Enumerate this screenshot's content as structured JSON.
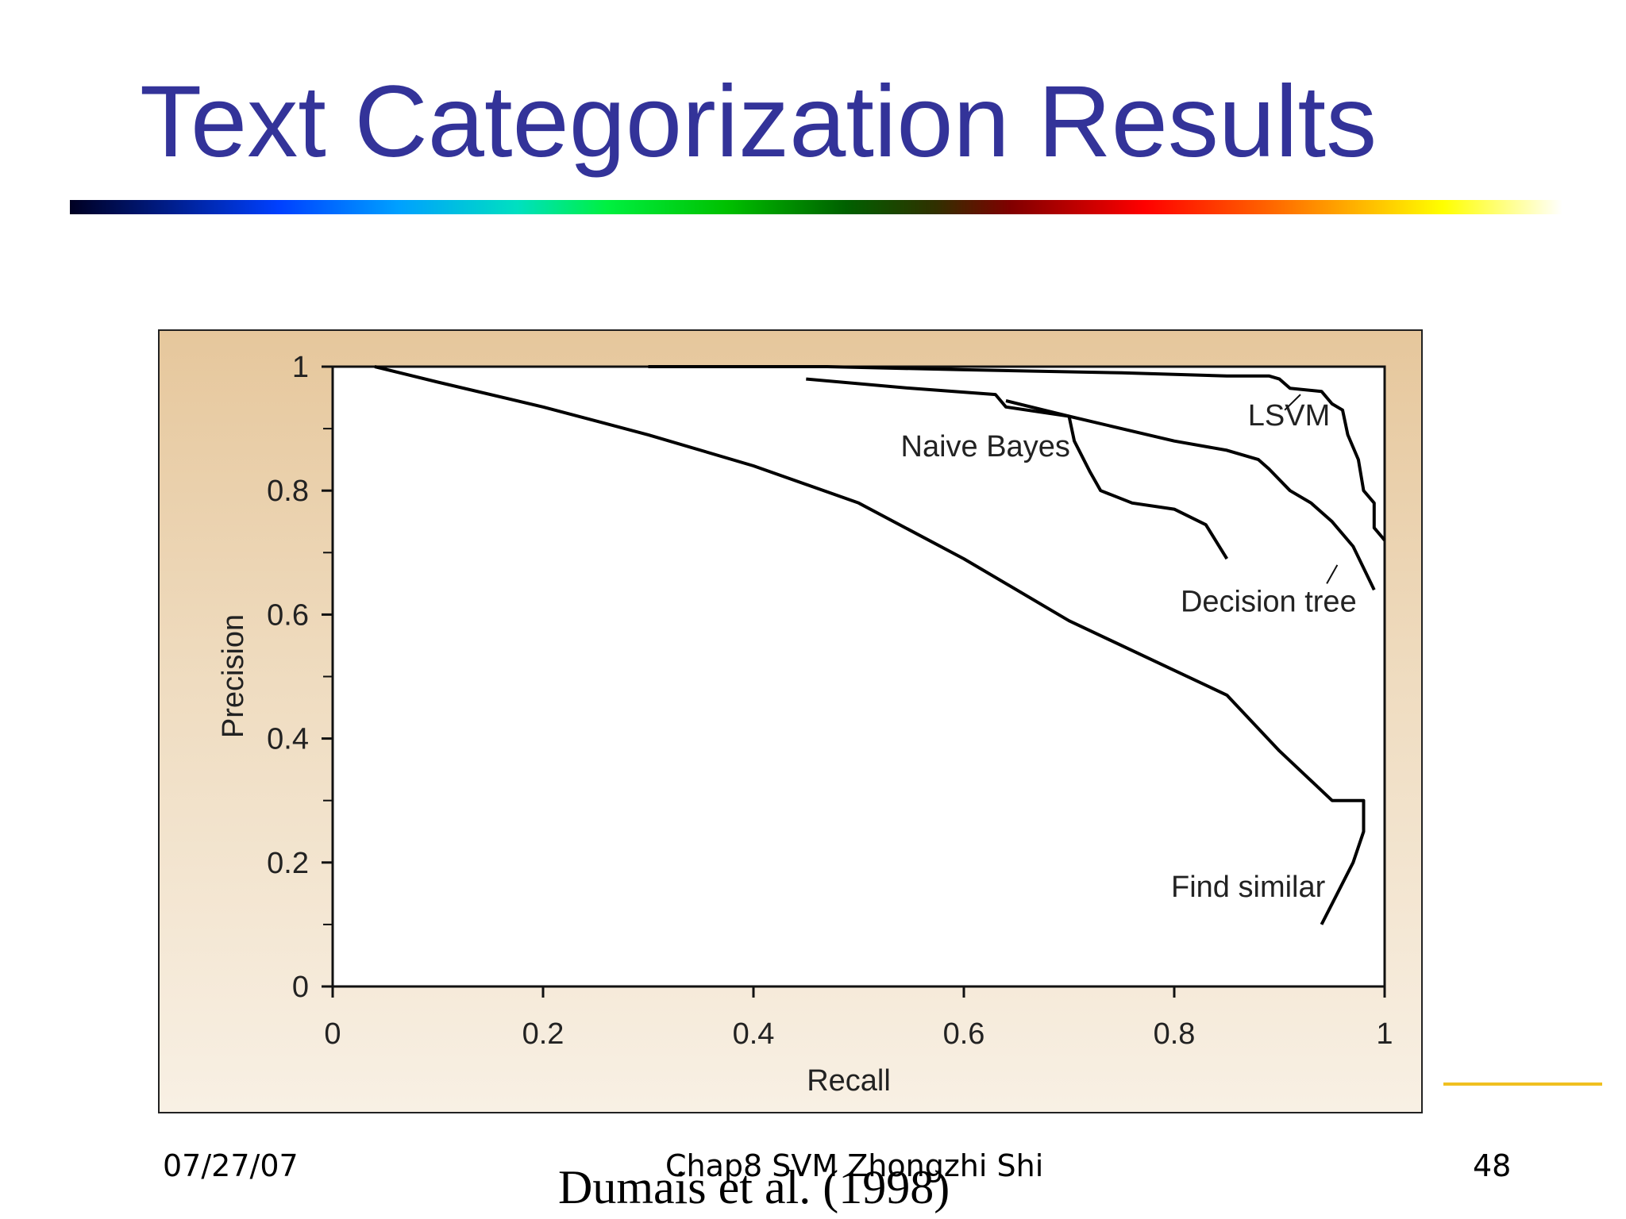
{
  "slide": {
    "title": "Text Categorization Results",
    "citation": "Dumais et al. (1998)",
    "footer_date": "07/27/07",
    "footer_center": "Chap8 SVM Zhongzhi Shi",
    "page_number": "48"
  },
  "colors": {
    "title": "#333399",
    "line": "#000000",
    "accent_line": "#f0c020"
  },
  "chart_data": {
    "type": "line",
    "title": "",
    "xlabel": "Recall",
    "ylabel": "Precision",
    "xlim": [
      0,
      1
    ],
    "ylim": [
      0,
      1
    ],
    "x_ticks": [
      "0",
      "0.2",
      "0.4",
      "0.6",
      "0.8",
      "1"
    ],
    "y_ticks": [
      "0",
      "0.2",
      "0.4",
      "0.6",
      "0.8",
      "1"
    ],
    "grid": false,
    "series": [
      {
        "name": "LSVM",
        "points": [
          [
            0.3,
            1.0
          ],
          [
            0.47,
            1.0
          ],
          [
            0.6,
            0.995
          ],
          [
            0.75,
            0.99
          ],
          [
            0.85,
            0.985
          ],
          [
            0.89,
            0.985
          ],
          [
            0.9,
            0.98
          ],
          [
            0.91,
            0.965
          ],
          [
            0.94,
            0.96
          ],
          [
            0.95,
            0.94
          ],
          [
            0.96,
            0.93
          ],
          [
            0.965,
            0.89
          ],
          [
            0.975,
            0.85
          ],
          [
            0.98,
            0.8
          ],
          [
            0.99,
            0.78
          ],
          [
            0.99,
            0.74
          ],
          [
            1.0,
            0.72
          ]
        ]
      },
      {
        "name": "Naive Bayes",
        "points": [
          [
            0.45,
            0.98
          ],
          [
            0.55,
            0.965
          ],
          [
            0.63,
            0.955
          ],
          [
            0.64,
            0.935
          ],
          [
            0.7,
            0.92
          ],
          [
            0.705,
            0.88
          ],
          [
            0.72,
            0.83
          ],
          [
            0.73,
            0.8
          ],
          [
            0.76,
            0.78
          ],
          [
            0.8,
            0.77
          ],
          [
            0.83,
            0.745
          ],
          [
            0.85,
            0.69
          ]
        ]
      },
      {
        "name": "Decision tree",
        "points": [
          [
            0.64,
            0.945
          ],
          [
            0.7,
            0.92
          ],
          [
            0.8,
            0.88
          ],
          [
            0.85,
            0.865
          ],
          [
            0.88,
            0.85
          ],
          [
            0.89,
            0.835
          ],
          [
            0.91,
            0.8
          ],
          [
            0.93,
            0.78
          ],
          [
            0.95,
            0.75
          ],
          [
            0.97,
            0.71
          ],
          [
            0.99,
            0.64
          ]
        ]
      },
      {
        "name": "Find similar",
        "points": [
          [
            0.04,
            1.0
          ],
          [
            0.1,
            0.975
          ],
          [
            0.2,
            0.935
          ],
          [
            0.3,
            0.89
          ],
          [
            0.4,
            0.84
          ],
          [
            0.5,
            0.78
          ],
          [
            0.6,
            0.69
          ],
          [
            0.7,
            0.59
          ],
          [
            0.8,
            0.51
          ],
          [
            0.85,
            0.47
          ],
          [
            0.9,
            0.38
          ],
          [
            0.95,
            0.3
          ],
          [
            0.98,
            0.3
          ],
          [
            0.98,
            0.25
          ],
          [
            0.97,
            0.2
          ],
          [
            0.94,
            0.1
          ]
        ]
      }
    ],
    "annotations": [
      "LSVM",
      "Naive Bayes",
      "Decision tree",
      "Find similar"
    ]
  }
}
